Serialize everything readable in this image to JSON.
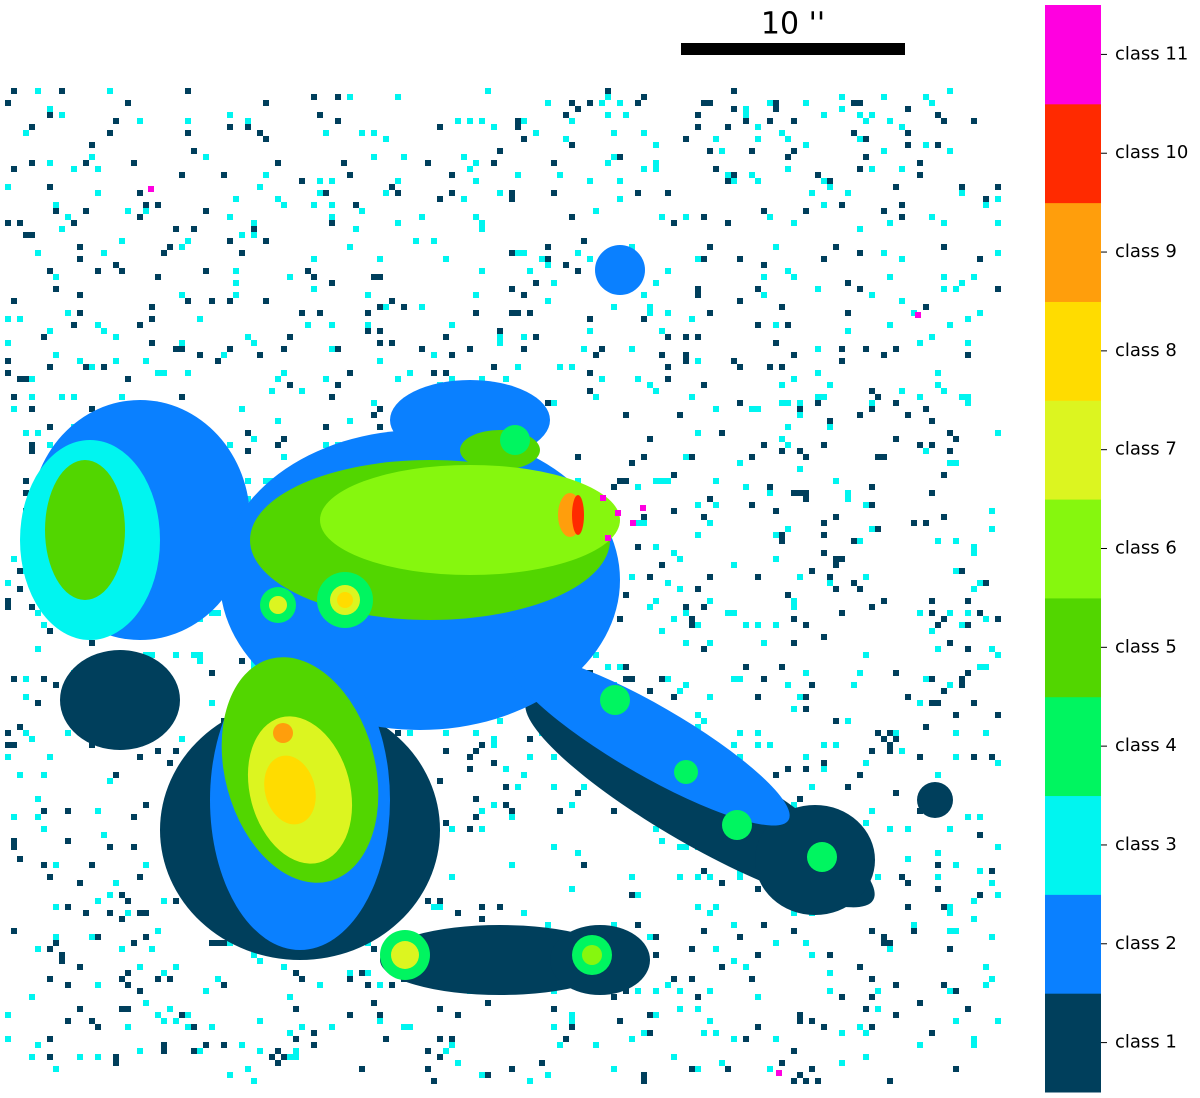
{
  "scale_bar": {
    "label": "10 ''"
  },
  "colorbar": {
    "classes": [
      {
        "label": "class 1",
        "color": "#003f5c"
      },
      {
        "label": "class 2",
        "color": "#0a80ff"
      },
      {
        "label": "class 3",
        "color": "#00f5f0"
      },
      {
        "label": "class 4",
        "color": "#00f560"
      },
      {
        "label": "class 5",
        "color": "#52d600"
      },
      {
        "label": "class 6",
        "color": "#86f70e"
      },
      {
        "label": "class 7",
        "color": "#dcf520"
      },
      {
        "label": "class 8",
        "color": "#ffdc00"
      },
      {
        "label": "class 9",
        "color": "#ff9e0c"
      },
      {
        "label": "class 10",
        "color": "#ff2a00"
      },
      {
        "label": "class 11",
        "color": "#ff00e0"
      }
    ]
  }
}
